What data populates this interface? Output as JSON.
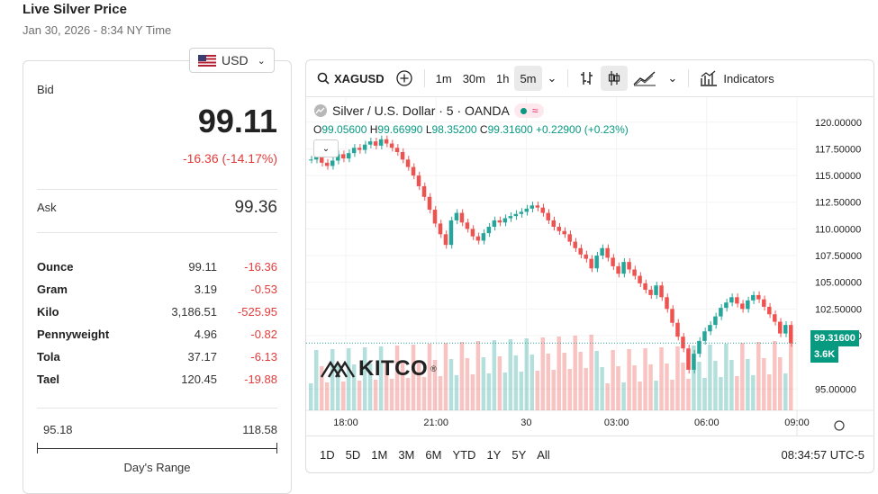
{
  "header": {
    "title": "Live Silver Price",
    "subtitle": "Jan 30, 2026 - 8:34 NY Time"
  },
  "currency": {
    "label": "USD"
  },
  "quote": {
    "bid_label": "Bid",
    "bid": "99.11",
    "bid_change": "-16.36 (-14.17%)",
    "ask_label": "Ask",
    "ask": "99.36"
  },
  "units": [
    {
      "name": "Ounce",
      "value": "99.11",
      "change": "-16.36"
    },
    {
      "name": "Gram",
      "value": "3.19",
      "change": "-0.53"
    },
    {
      "name": "Kilo",
      "value": "3,186.51",
      "change": "-525.95"
    },
    {
      "name": "Pennyweight",
      "value": "4.96",
      "change": "-0.82"
    },
    {
      "name": "Tola",
      "value": "37.17",
      "change": "-6.13"
    },
    {
      "name": "Tael",
      "value": "120.45",
      "change": "-19.88"
    }
  ],
  "day_range": {
    "low": "95.18",
    "high": "118.58",
    "label": "Day's Range"
  },
  "chart_toolbar": {
    "symbol": "XAGUSD",
    "intervals": [
      "1m",
      "30m",
      "1h",
      "5m"
    ],
    "active_interval": "5m",
    "indicators_label": "Indicators"
  },
  "chart_info": {
    "series_title": "Silver / U.S. Dollar · 5 · OANDA",
    "o_label": "O",
    "o": "99.05600",
    "h_label": "H",
    "h": "99.66990",
    "l_label": "L",
    "l": "98.35200",
    "c_label": "C",
    "c": "99.31600",
    "change": "+0.22900 (+0.23%)"
  },
  "price_label": "99.31600",
  "volume_label": "3.6K",
  "brand": "KITCO",
  "ranges": [
    "1D",
    "5D",
    "1M",
    "3M",
    "6M",
    "YTD",
    "1Y",
    "5Y",
    "All"
  ],
  "clock": "08:34:57 UTC-5",
  "chart_data": {
    "type": "line",
    "y_ticks": [
      "120.00000",
      "117.50000",
      "115.00000",
      "112.50000",
      "110.00000",
      "107.50000",
      "105.00000",
      "102.50000",
      "100.00000",
      "95.00000"
    ],
    "x_ticks": [
      "18:00",
      "21:00",
      "30",
      "03:00",
      "06:00",
      "09:00"
    ],
    "ylim": [
      93,
      121.5
    ],
    "series": [
      {
        "values": [
          116.5,
          116.8,
          116.2,
          115.9,
          116.4,
          117.0,
          116.6,
          117.1,
          117.6,
          117.4,
          117.9,
          118.2,
          117.8,
          118.4,
          118.0,
          117.6,
          117.2,
          116.5,
          115.8,
          115.0,
          114.0,
          113.0,
          111.8,
          110.5,
          109.5,
          108.5,
          110.8,
          111.5,
          110.6,
          110.0,
          109.3,
          108.9,
          109.6,
          110.2,
          110.8,
          110.6,
          111.0,
          111.2,
          111.4,
          111.6,
          111.9,
          112.2,
          112.0,
          111.5,
          110.8,
          110.2,
          109.8,
          109.5,
          108.8,
          108.2,
          107.6,
          107.2,
          106.3,
          107.5,
          108.2,
          107.3,
          106.5,
          105.8,
          106.9,
          106.2,
          105.6,
          104.9,
          104.3,
          103.8,
          104.7,
          103.6,
          102.5,
          101.2,
          99.9,
          98.8,
          96.8,
          98.3,
          99.5,
          100.4,
          101.0,
          101.8,
          102.6,
          103.1,
          103.6,
          103.0,
          102.5,
          103.3,
          103.8,
          103.4,
          102.7,
          102.0,
          101.3,
          100.2,
          101.0,
          99.3
        ]
      }
    ]
  }
}
